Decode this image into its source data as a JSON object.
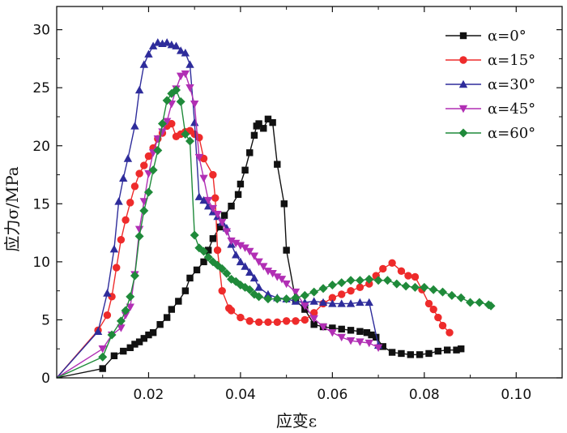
{
  "chart_data": {
    "type": "line",
    "title": "",
    "xlabel": "应变ε",
    "ylabel": "应力σ/MPa",
    "xlim": [
      0,
      0.11
    ],
    "ylim": [
      0,
      32
    ],
    "xticks": [
      0.02,
      0.04,
      0.06,
      0.08,
      0.1
    ],
    "xtick_labels": [
      "0.02",
      "0.04",
      "0.06",
      "0.08",
      "0.10"
    ],
    "yticks": [
      0,
      5,
      10,
      15,
      20,
      25,
      30
    ],
    "ytick_labels": [
      "0",
      "5",
      "10",
      "15",
      "20",
      "25",
      "30"
    ],
    "legend_position": "top-right",
    "series": [
      {
        "name": "α=0°",
        "color": "#111111",
        "marker": "square",
        "points": [
          [
            0,
            0
          ],
          [
            0.01,
            0.8
          ],
          [
            0.0125,
            1.9
          ],
          [
            0.0145,
            2.3
          ],
          [
            0.016,
            2.6
          ],
          [
            0.017,
            2.9
          ],
          [
            0.018,
            3.1
          ],
          [
            0.019,
            3.4
          ],
          [
            0.02,
            3.7
          ],
          [
            0.021,
            3.9
          ],
          [
            0.0225,
            4.6
          ],
          [
            0.024,
            5.2
          ],
          [
            0.025,
            5.9
          ],
          [
            0.0265,
            6.6
          ],
          [
            0.028,
            7.5
          ],
          [
            0.029,
            8.6
          ],
          [
            0.0305,
            9.3
          ],
          [
            0.032,
            10.0
          ],
          [
            0.033,
            11.0
          ],
          [
            0.034,
            12.0
          ],
          [
            0.0355,
            13.0
          ],
          [
            0.0365,
            14.0
          ],
          [
            0.038,
            14.8
          ],
          [
            0.0395,
            15.8
          ],
          [
            0.04,
            16.7
          ],
          [
            0.041,
            17.9
          ],
          [
            0.042,
            19.4
          ],
          [
            0.043,
            20.9
          ],
          [
            0.0435,
            21.7
          ],
          [
            0.044,
            21.9
          ],
          [
            0.045,
            21.5
          ],
          [
            0.046,
            22.3
          ],
          [
            0.047,
            22.0
          ],
          [
            0.048,
            18.4
          ],
          [
            0.0495,
            15.0
          ],
          [
            0.05,
            11.0
          ],
          [
            0.052,
            6.7
          ],
          [
            0.054,
            5.9
          ],
          [
            0.056,
            4.6
          ],
          [
            0.058,
            4.4
          ],
          [
            0.06,
            4.3
          ],
          [
            0.062,
            4.2
          ],
          [
            0.064,
            4.1
          ],
          [
            0.066,
            4.0
          ],
          [
            0.0675,
            3.9
          ],
          [
            0.0685,
            3.7
          ],
          [
            0.0695,
            3.5
          ],
          [
            0.071,
            2.7
          ],
          [
            0.073,
            2.2
          ],
          [
            0.075,
            2.1
          ],
          [
            0.077,
            2.0
          ],
          [
            0.079,
            2.0
          ],
          [
            0.081,
            2.1
          ],
          [
            0.083,
            2.3
          ],
          [
            0.085,
            2.4
          ],
          [
            0.087,
            2.4
          ],
          [
            0.088,
            2.5
          ]
        ]
      },
      {
        "name": "α=15°",
        "color": "#ee2b2b",
        "marker": "circle",
        "points": [
          [
            0,
            0
          ],
          [
            0.009,
            4.1
          ],
          [
            0.011,
            5.4
          ],
          [
            0.012,
            7.0
          ],
          [
            0.013,
            9.5
          ],
          [
            0.014,
            11.9
          ],
          [
            0.015,
            13.6
          ],
          [
            0.016,
            15.1
          ],
          [
            0.017,
            16.5
          ],
          [
            0.018,
            17.6
          ],
          [
            0.019,
            18.3
          ],
          [
            0.02,
            19.1
          ],
          [
            0.021,
            19.8
          ],
          [
            0.022,
            20.6
          ],
          [
            0.023,
            21.1
          ],
          [
            0.024,
            21.7
          ],
          [
            0.025,
            21.9
          ],
          [
            0.026,
            20.8
          ],
          [
            0.027,
            21.0
          ],
          [
            0.028,
            21.2
          ],
          [
            0.029,
            21.3
          ],
          [
            0.03,
            21.0
          ],
          [
            0.031,
            20.7
          ],
          [
            0.032,
            18.9
          ],
          [
            0.034,
            17.5
          ],
          [
            0.0345,
            15.5
          ],
          [
            0.035,
            11.0
          ],
          [
            0.036,
            7.5
          ],
          [
            0.0375,
            6.0
          ],
          [
            0.038,
            5.8
          ],
          [
            0.04,
            5.2
          ],
          [
            0.042,
            4.9
          ],
          [
            0.044,
            4.8
          ],
          [
            0.046,
            4.8
          ],
          [
            0.048,
            4.8
          ],
          [
            0.05,
            4.9
          ],
          [
            0.052,
            4.9
          ],
          [
            0.054,
            5.0
          ],
          [
            0.056,
            5.6
          ],
          [
            0.058,
            6.4
          ],
          [
            0.06,
            6.9
          ],
          [
            0.062,
            7.2
          ],
          [
            0.064,
            7.5
          ],
          [
            0.066,
            7.8
          ],
          [
            0.068,
            8.1
          ],
          [
            0.0695,
            8.8
          ],
          [
            0.071,
            9.4
          ],
          [
            0.073,
            9.9
          ],
          [
            0.075,
            9.2
          ],
          [
            0.0765,
            8.8
          ],
          [
            0.078,
            8.7
          ],
          [
            0.0795,
            7.6
          ],
          [
            0.081,
            6.4
          ],
          [
            0.082,
            5.9
          ],
          [
            0.083,
            5.2
          ],
          [
            0.084,
            4.5
          ],
          [
            0.0855,
            3.9
          ]
        ]
      },
      {
        "name": "α=30°",
        "color": "#2e2c9b",
        "marker": "triangle-up",
        "points": [
          [
            0,
            0
          ],
          [
            0.009,
            4.0
          ],
          [
            0.011,
            7.3
          ],
          [
            0.0125,
            11.1
          ],
          [
            0.0135,
            15.2
          ],
          [
            0.0145,
            17.2
          ],
          [
            0.0155,
            18.9
          ],
          [
            0.017,
            21.7
          ],
          [
            0.018,
            24.8
          ],
          [
            0.019,
            27.0
          ],
          [
            0.02,
            27.9
          ],
          [
            0.021,
            28.6
          ],
          [
            0.022,
            28.9
          ],
          [
            0.023,
            28.8
          ],
          [
            0.024,
            28.9
          ],
          [
            0.025,
            28.7
          ],
          [
            0.026,
            28.6
          ],
          [
            0.027,
            28.2
          ],
          [
            0.028,
            28.0
          ],
          [
            0.029,
            27.0
          ],
          [
            0.03,
            22.0
          ],
          [
            0.031,
            15.6
          ],
          [
            0.032,
            15.3
          ],
          [
            0.033,
            14.8
          ],
          [
            0.034,
            14.3
          ],
          [
            0.035,
            13.9
          ],
          [
            0.036,
            13.4
          ],
          [
            0.037,
            12.9
          ],
          [
            0.038,
            11.5
          ],
          [
            0.039,
            10.6
          ],
          [
            0.04,
            10.0
          ],
          [
            0.041,
            9.6
          ],
          [
            0.042,
            9.1
          ],
          [
            0.043,
            8.6
          ],
          [
            0.044,
            7.8
          ],
          [
            0.046,
            7.2
          ],
          [
            0.048,
            6.9
          ],
          [
            0.05,
            6.8
          ],
          [
            0.052,
            6.6
          ],
          [
            0.054,
            6.5
          ],
          [
            0.056,
            6.6
          ],
          [
            0.058,
            6.5
          ],
          [
            0.06,
            6.4
          ],
          [
            0.062,
            6.4
          ],
          [
            0.064,
            6.4
          ],
          [
            0.066,
            6.5
          ],
          [
            0.068,
            6.5
          ],
          [
            0.07,
            2.8
          ]
        ]
      },
      {
        "name": "α=45°",
        "color": "#b12fb4",
        "marker": "triangle-down",
        "points": [
          [
            0,
            0
          ],
          [
            0.01,
            2.5
          ],
          [
            0.012,
            3.7
          ],
          [
            0.014,
            4.3
          ],
          [
            0.015,
            5.4
          ],
          [
            0.016,
            6.1
          ],
          [
            0.017,
            8.9
          ],
          [
            0.018,
            12.8
          ],
          [
            0.019,
            15.2
          ],
          [
            0.02,
            17.6
          ],
          [
            0.021,
            19.4
          ],
          [
            0.022,
            20.6
          ],
          [
            0.023,
            21.2
          ],
          [
            0.024,
            22.1
          ],
          [
            0.025,
            23.6
          ],
          [
            0.026,
            24.9
          ],
          [
            0.027,
            26.0
          ],
          [
            0.028,
            26.2
          ],
          [
            0.029,
            25.0
          ],
          [
            0.03,
            23.6
          ],
          [
            0.031,
            19.0
          ],
          [
            0.032,
            17.2
          ],
          [
            0.033,
            15.3
          ],
          [
            0.034,
            14.6
          ],
          [
            0.035,
            14.1
          ],
          [
            0.036,
            13.4
          ],
          [
            0.037,
            12.6
          ],
          [
            0.038,
            11.8
          ],
          [
            0.039,
            11.6
          ],
          [
            0.04,
            11.4
          ],
          [
            0.041,
            11.2
          ],
          [
            0.042,
            10.9
          ],
          [
            0.043,
            10.5
          ],
          [
            0.044,
            10.0
          ],
          [
            0.045,
            9.6
          ],
          [
            0.046,
            9.2
          ],
          [
            0.047,
            9.0
          ],
          [
            0.048,
            8.7
          ],
          [
            0.049,
            8.5
          ],
          [
            0.05,
            8.1
          ],
          [
            0.052,
            7.4
          ],
          [
            0.054,
            6.2
          ],
          [
            0.056,
            5.1
          ],
          [
            0.058,
            4.4
          ],
          [
            0.06,
            3.9
          ],
          [
            0.062,
            3.5
          ],
          [
            0.064,
            3.2
          ],
          [
            0.066,
            3.1
          ],
          [
            0.068,
            3.0
          ],
          [
            0.07,
            2.6
          ]
        ]
      },
      {
        "name": "α=60°",
        "color": "#1f8a3a",
        "marker": "diamond",
        "points": [
          [
            0,
            0
          ],
          [
            0.01,
            1.8
          ],
          [
            0.012,
            3.7
          ],
          [
            0.014,
            4.9
          ],
          [
            0.015,
            5.8
          ],
          [
            0.016,
            7.0
          ],
          [
            0.017,
            8.8
          ],
          [
            0.018,
            12.2
          ],
          [
            0.019,
            14.4
          ],
          [
            0.02,
            16.0
          ],
          [
            0.021,
            17.9
          ],
          [
            0.022,
            19.6
          ],
          [
            0.023,
            21.9
          ],
          [
            0.024,
            23.9
          ],
          [
            0.025,
            24.5
          ],
          [
            0.026,
            24.8
          ],
          [
            0.027,
            23.8
          ],
          [
            0.028,
            21.0
          ],
          [
            0.029,
            20.4
          ],
          [
            0.03,
            12.3
          ],
          [
            0.031,
            11.2
          ],
          [
            0.032,
            10.9
          ],
          [
            0.033,
            10.4
          ],
          [
            0.034,
            10.0
          ],
          [
            0.035,
            9.7
          ],
          [
            0.036,
            9.4
          ],
          [
            0.037,
            9.0
          ],
          [
            0.038,
            8.5
          ],
          [
            0.039,
            8.3
          ],
          [
            0.04,
            8.0
          ],
          [
            0.041,
            7.8
          ],
          [
            0.042,
            7.6
          ],
          [
            0.043,
            7.2
          ],
          [
            0.044,
            7.0
          ],
          [
            0.046,
            6.8
          ],
          [
            0.048,
            6.8
          ],
          [
            0.05,
            6.8
          ],
          [
            0.052,
            6.9
          ],
          [
            0.054,
            7.1
          ],
          [
            0.056,
            7.4
          ],
          [
            0.058,
            7.7
          ],
          [
            0.06,
            8.0
          ],
          [
            0.062,
            8.2
          ],
          [
            0.064,
            8.4
          ],
          [
            0.066,
            8.4
          ],
          [
            0.068,
            8.5
          ],
          [
            0.07,
            8.4
          ],
          [
            0.072,
            8.4
          ],
          [
            0.074,
            8.1
          ],
          [
            0.076,
            7.9
          ],
          [
            0.078,
            7.8
          ],
          [
            0.08,
            7.8
          ],
          [
            0.082,
            7.6
          ],
          [
            0.084,
            7.4
          ],
          [
            0.086,
            7.1
          ],
          [
            0.088,
            6.9
          ],
          [
            0.09,
            6.5
          ],
          [
            0.092,
            6.5
          ],
          [
            0.094,
            6.3
          ],
          [
            0.0945,
            6.2
          ]
        ]
      }
    ]
  }
}
